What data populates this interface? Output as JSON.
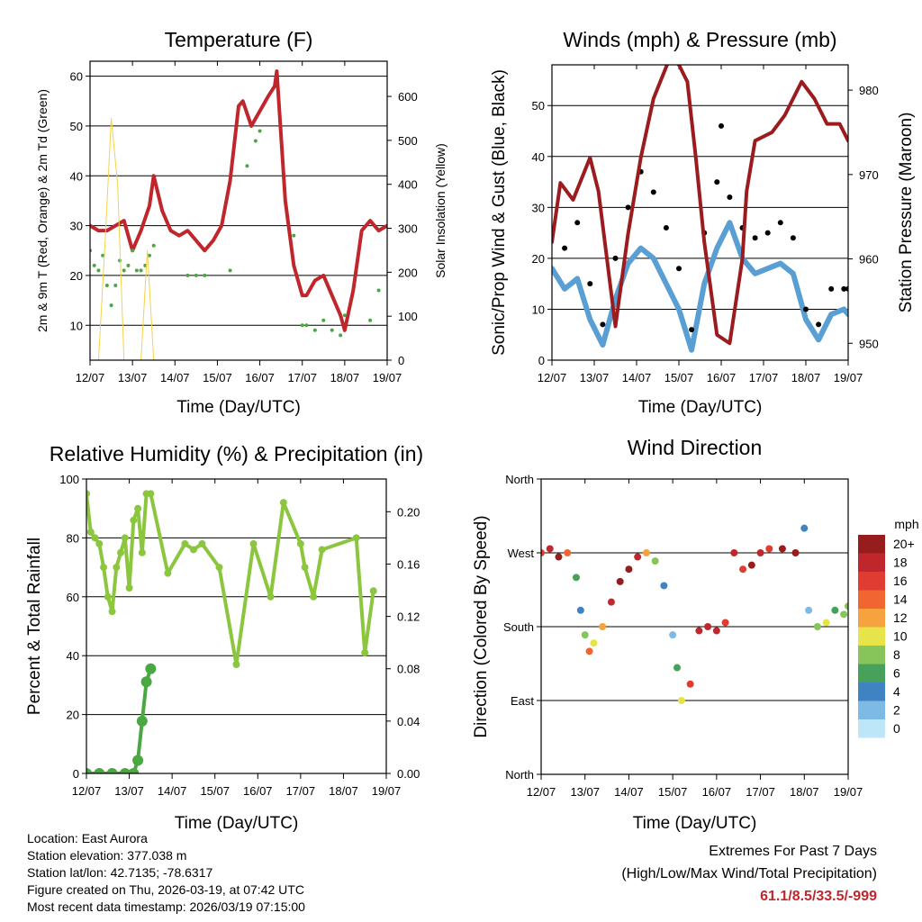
{
  "colors": {
    "temp_red": "#c0272d",
    "temp_orange": "#f07a22",
    "dew_green": "#4aa843",
    "solar_yellow": "#f4d24a",
    "wind_blue": "#5a9fd4",
    "gust_black": "#000000",
    "pressure_maroon": "#9b1c1f",
    "rh_green": "#8cc63f",
    "precip_green": "#4aa843"
  },
  "chart_data": [
    {
      "type": "scatter",
      "title": "Temperature (F)",
      "xlabel": "Time (Day/UTC)",
      "ylabel": "2m & 9m T (Red, Orange) & 2m Td (Green)",
      "y2label": "Solar Insolation (Yellow)",
      "x_ticks": [
        "12/07",
        "13/07",
        "14/07",
        "15/07",
        "16/07",
        "17/07",
        "18/07",
        "19/07"
      ],
      "xlim": [
        0,
        7
      ],
      "ylim": [
        3,
        63
      ],
      "y_ticks": [
        10,
        20,
        30,
        40,
        50,
        60
      ],
      "y2lim": [
        0,
        680
      ],
      "y2_ticks": [
        0,
        100,
        200,
        300,
        400,
        500,
        600
      ],
      "series": [
        {
          "name": "2m T",
          "color": "#c0272d",
          "x": [
            0,
            0.2,
            0.4,
            0.6,
            0.8,
            1.0,
            1.2,
            1.4,
            1.5,
            1.7,
            1.9,
            2.1,
            2.3,
            2.5,
            2.7,
            2.9,
            3.1,
            3.3,
            3.5,
            3.6,
            3.8,
            4.0,
            4.2,
            4.35,
            4.4,
            4.6,
            4.8,
            5.0,
            5.1,
            5.3,
            5.5,
            5.7,
            5.9,
            6.0,
            6.2,
            6.4,
            6.6,
            6.8,
            7.0
          ],
          "y": [
            30,
            29,
            29,
            30,
            31,
            25,
            29,
            34,
            40,
            33,
            29,
            28,
            29,
            27,
            25,
            27,
            30,
            39,
            54,
            55,
            50,
            53,
            56,
            58,
            61,
            35,
            22,
            16,
            16,
            19,
            20,
            16,
            12,
            9,
            17,
            29,
            31,
            29,
            30
          ]
        },
        {
          "name": "2m Td",
          "color": "#4aa843",
          "x": [
            0,
            0.1,
            0.2,
            0.3,
            0.4,
            0.5,
            0.6,
            0.7,
            0.8,
            0.9,
            1.0,
            1.1,
            1.2,
            1.3,
            1.4,
            1.5,
            2.3,
            2.5,
            2.7,
            3.3,
            3.7,
            3.9,
            4.0,
            4.8,
            5.0,
            5.1,
            5.3,
            5.5,
            5.7,
            5.9,
            6.0,
            6.6,
            6.8
          ],
          "y": [
            25,
            22,
            21,
            24,
            18,
            14,
            18,
            23,
            21,
            22,
            25,
            21,
            21,
            22,
            24,
            26,
            20,
            20,
            20,
            21,
            42,
            47,
            49,
            28,
            10,
            10,
            9,
            11,
            9,
            8,
            12,
            11,
            17
          ]
        },
        {
          "name": "Solar",
          "axis": "y2",
          "color": "#f4d24a",
          "x": [
            0.2,
            0.35,
            0.5,
            0.65,
            0.8,
            1.2,
            1.35,
            1.5
          ],
          "y": [
            0,
            260,
            550,
            400,
            0,
            0,
            250,
            0
          ]
        }
      ]
    },
    {
      "type": "scatter",
      "title": "Winds (mph) & Pressure (mb)",
      "xlabel": "Time (Day/UTC)",
      "ylabel": "Sonic/Prop Wind & Gust (Blue, Black)",
      "y2label": "Station Pressure (Maroon)",
      "x_ticks": [
        "12/07",
        "13/07",
        "14/07",
        "15/07",
        "16/07",
        "17/07",
        "18/07",
        "19/07"
      ],
      "xlim": [
        0,
        7
      ],
      "ylim": [
        0,
        58
      ],
      "y_ticks": [
        0,
        10,
        20,
        30,
        40,
        50
      ],
      "y2lim": [
        948,
        983
      ],
      "y2_ticks": [
        950,
        960,
        970,
        980
      ],
      "series": [
        {
          "name": "Wind",
          "color": "#5a9fd4",
          "x": [
            0,
            0.3,
            0.6,
            0.9,
            1.2,
            1.5,
            1.8,
            2.1,
            2.4,
            2.7,
            3.0,
            3.3,
            3.6,
            3.9,
            4.2,
            4.5,
            4.8,
            5.1,
            5.4,
            5.7,
            6.0,
            6.3,
            6.6,
            6.9,
            7.0
          ],
          "y": [
            18,
            14,
            16,
            8,
            3,
            12,
            19,
            22,
            20,
            15,
            10,
            2,
            15,
            22,
            27,
            20,
            17,
            18,
            19,
            17,
            8,
            4,
            9,
            10,
            9
          ]
        },
        {
          "name": "Gust",
          "color": "#000000",
          "x": [
            0,
            0.3,
            0.6,
            0.9,
            1.2,
            1.5,
            1.8,
            2.1,
            2.4,
            2.7,
            3.0,
            3.3,
            3.6,
            3.9,
            4.0,
            4.2,
            4.5,
            4.8,
            5.1,
            5.4,
            5.7,
            6.0,
            6.3,
            6.6,
            6.9,
            7.0
          ],
          "y": [
            25,
            22,
            27,
            15,
            7,
            20,
            30,
            37,
            33,
            26,
            18,
            6,
            25,
            35,
            46,
            32,
            26,
            24,
            25,
            27,
            24,
            10,
            7,
            14,
            14,
            14
          ]
        },
        {
          "name": "Pressure",
          "axis": "y2",
          "color": "#9b1c1f",
          "x": [
            0,
            0.2,
            0.5,
            0.9,
            1.1,
            1.5,
            1.8,
            2.1,
            2.4,
            2.8,
            3.0,
            3.2,
            3.4,
            3.6,
            3.9,
            4.2,
            4.5,
            4.6,
            4.8,
            5.2,
            5.5,
            5.9,
            6.2,
            6.5,
            6.8,
            7.0
          ],
          "y": [
            962,
            969,
            967,
            972,
            968,
            952,
            963,
            972,
            979,
            984,
            983,
            981,
            972,
            962,
            951,
            950,
            960,
            968,
            974,
            975,
            977,
            981,
            979,
            976,
            976,
            974
          ]
        }
      ]
    },
    {
      "type": "scatter",
      "title": "Relative Humidity (%) & Precipitation (in)",
      "xlabel": "Time (Day/UTC)",
      "ylabel": "Percent & Total Rainfall",
      "x_ticks": [
        "12/07",
        "13/07",
        "14/07",
        "15/07",
        "16/07",
        "17/07",
        "18/07",
        "19/07"
      ],
      "xlim": [
        0,
        7
      ],
      "ylim": [
        0,
        100
      ],
      "y_ticks": [
        0,
        20,
        40,
        60,
        80,
        100
      ],
      "y2lim": [
        0,
        0.225
      ],
      "y2_ticks": [
        "0.00",
        "0.04",
        "0.08",
        "0.12",
        "0.16",
        "0.20"
      ],
      "series": [
        {
          "name": "RH",
          "color": "#8cc63f",
          "x": [
            0,
            0.1,
            0.2,
            0.3,
            0.4,
            0.5,
            0.6,
            0.7,
            0.8,
            0.9,
            1.0,
            1.1,
            1.2,
            1.3,
            1.4,
            1.5,
            1.9,
            2.3,
            2.5,
            2.7,
            3.1,
            3.5,
            3.9,
            4.3,
            4.6,
            5.0,
            5.1,
            5.3,
            5.5,
            6.3,
            6.5,
            6.7
          ],
          "y": [
            95,
            82,
            80,
            78,
            70,
            60,
            55,
            70,
            75,
            80,
            63,
            86,
            90,
            75,
            95,
            95,
            68,
            78,
            76,
            78,
            70,
            37,
            78,
            60,
            92,
            78,
            70,
            60,
            76,
            80,
            41,
            62
          ]
        },
        {
          "name": "Precip",
          "axis": "y2",
          "color": "#4aa843",
          "x": [
            0,
            0.3,
            0.6,
            0.9,
            1.1,
            1.2,
            1.3,
            1.4,
            1.5
          ],
          "y": [
            0,
            0,
            0,
            0,
            0,
            0.01,
            0.04,
            0.07,
            0.08
          ]
        }
      ]
    },
    {
      "type": "scatter",
      "title": "Wind Direction",
      "xlabel": "Time (Day/UTC)",
      "ylabel": "Direction (Colored By Speed)",
      "x_ticks": [
        "12/07",
        "13/07",
        "14/07",
        "15/07",
        "16/07",
        "17/07",
        "18/07",
        "19/07"
      ],
      "xlim": [
        0,
        7
      ],
      "ylim": [
        0,
        360
      ],
      "y_ticks": [
        0,
        90,
        180,
        270,
        360
      ],
      "y_tick_labels": [
        "North",
        "East",
        "South",
        "West",
        "North"
      ],
      "legend_title": "mph",
      "legend_labels": [
        "20+",
        "18",
        "16",
        "14",
        "12",
        "10",
        "8",
        "6",
        "4",
        "2",
        "0"
      ],
      "legend_colors": [
        "#971c1c",
        "#c0272d",
        "#e03c31",
        "#f06530",
        "#f5a23f",
        "#e6e448",
        "#87c55b",
        "#47a15a",
        "#3f83c3",
        "#7dbbe5",
        "#bde6f8"
      ],
      "series": [
        {
          "name": "Direction",
          "x": [
            0,
            0.2,
            0.4,
            0.6,
            0.8,
            0.9,
            1.0,
            1.1,
            1.2,
            1.4,
            1.6,
            1.8,
            2.0,
            2.2,
            2.4,
            2.6,
            2.8,
            3.0,
            3.1,
            3.2,
            3.4,
            3.6,
            3.8,
            4.0,
            4.2,
            4.4,
            4.6,
            4.8,
            5.0,
            5.2,
            5.5,
            5.8,
            6.0,
            6.1,
            6.3,
            6.5,
            6.7,
            6.9,
            7.0
          ],
          "y": [
            270,
            275,
            265,
            270,
            240,
            200,
            170,
            150,
            160,
            180,
            210,
            235,
            250,
            265,
            270,
            260,
            230,
            170,
            130,
            90,
            110,
            175,
            180,
            175,
            185,
            270,
            250,
            255,
            270,
            275,
            275,
            270,
            300,
            200,
            180,
            185,
            200,
            195,
            205
          ],
          "speeds": [
            16,
            18,
            20,
            14,
            6,
            4,
            8,
            14,
            10,
            12,
            18,
            20,
            20,
            18,
            12,
            8,
            4,
            2,
            6,
            10,
            16,
            18,
            18,
            18,
            16,
            18,
            16,
            20,
            18,
            16,
            20,
            20,
            4,
            2,
            8,
            10,
            6,
            8,
            8
          ]
        }
      ]
    }
  ],
  "info": {
    "location": "Location: East Aurora",
    "elevation": "Station elevation: 377.038 m",
    "latlon": "Station lat/lon: 42.7135; -78.6317",
    "created": "Figure created on Thu, 2026-03-19, at 07:42 UTC",
    "recent": "Most recent data timestamp: 2026/03/19 07:15:00"
  },
  "extremes": {
    "title": "Extremes For Past 7 Days",
    "subtitle": "(High/Low/Max Wind/Total Precipitation)",
    "values": "61.1/8.5/33.5/-999"
  }
}
